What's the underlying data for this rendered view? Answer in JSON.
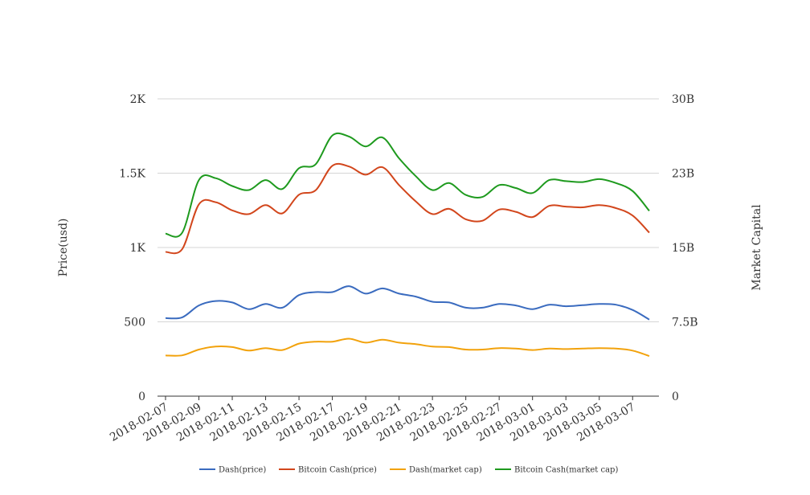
{
  "chart_data": {
    "type": "line",
    "title": "",
    "xlabel": "",
    "ylabel_left": "Price(usd)",
    "ylabel_right": "Market Capital",
    "ylim_left": [
      0,
      2000
    ],
    "ylim_right": [
      0,
      30000000000
    ],
    "yticks_left": [
      {
        "value": 0,
        "label": "0"
      },
      {
        "value": 500,
        "label": "500"
      },
      {
        "value": 1000,
        "label": "1K"
      },
      {
        "value": 1500,
        "label": "1.5K"
      },
      {
        "value": 2000,
        "label": "2K"
      }
    ],
    "yticks_right": [
      {
        "value": 0,
        "label": "0"
      },
      {
        "value": 7500000000,
        "label": "7.5B"
      },
      {
        "value": 15000000000,
        "label": "15B"
      },
      {
        "value": 22500000000,
        "label": "23B"
      },
      {
        "value": 30000000000,
        "label": "30B"
      }
    ],
    "x_tick_labels": [
      "2018-02-07",
      "2018-02-09",
      "2018-02-11",
      "2018-02-13",
      "2018-02-15",
      "2018-02-17",
      "2018-02-19",
      "2018-02-21",
      "2018-02-23",
      "2018-02-25",
      "2018-02-27",
      "2018-03-01",
      "2018-03-03",
      "2018-03-05",
      "2018-03-07"
    ],
    "x": [
      "2018-02-07",
      "2018-02-08",
      "2018-02-09",
      "2018-02-10",
      "2018-02-11",
      "2018-02-12",
      "2018-02-13",
      "2018-02-14",
      "2018-02-15",
      "2018-02-16",
      "2018-02-17",
      "2018-02-18",
      "2018-02-19",
      "2018-02-20",
      "2018-02-21",
      "2018-02-22",
      "2018-02-23",
      "2018-02-24",
      "2018-02-25",
      "2018-02-26",
      "2018-02-27",
      "2018-02-28",
      "2018-03-01",
      "2018-03-02",
      "2018-03-03",
      "2018-03-04",
      "2018-03-05",
      "2018-03-06",
      "2018-03-07",
      "2018-03-08"
    ],
    "grid": true,
    "legend_position": "bottom",
    "series": [
      {
        "name": "Dash(price)",
        "axis": "left",
        "color": "#3a6bbf",
        "values": [
          525,
          530,
          610,
          640,
          630,
          585,
          620,
          595,
          680,
          700,
          700,
          740,
          690,
          725,
          690,
          670,
          635,
          630,
          595,
          595,
          620,
          610,
          585,
          615,
          605,
          612,
          620,
          615,
          580,
          515
        ]
      },
      {
        "name": "Bitcoin Cash(price)",
        "axis": "left",
        "color": "#d2461c",
        "values": [
          970,
          990,
          1290,
          1305,
          1250,
          1225,
          1285,
          1230,
          1355,
          1385,
          1550,
          1545,
          1490,
          1540,
          1420,
          1310,
          1225,
          1260,
          1190,
          1180,
          1255,
          1240,
          1205,
          1280,
          1275,
          1270,
          1285,
          1265,
          1215,
          1100
        ]
      },
      {
        "name": "Dash(market cap)",
        "axis": "right",
        "color": "#f2a20c",
        "values": [
          4100000000,
          4120000000,
          4700000000,
          5000000000,
          4950000000,
          4600000000,
          4850000000,
          4650000000,
          5300000000,
          5500000000,
          5500000000,
          5800000000,
          5400000000,
          5700000000,
          5400000000,
          5250000000,
          5000000000,
          4950000000,
          4700000000,
          4700000000,
          4850000000,
          4800000000,
          4650000000,
          4800000000,
          4750000000,
          4800000000,
          4850000000,
          4800000000,
          4600000000,
          4050000000
        ]
      },
      {
        "name": "Bitcoin Cash(market cap)",
        "axis": "right",
        "color": "#1e9a1e",
        "values": [
          16400000000,
          16500000000,
          21800000000,
          22000000000,
          21200000000,
          20800000000,
          21800000000,
          20900000000,
          23000000000,
          23400000000,
          26300000000,
          26200000000,
          25200000000,
          26100000000,
          24000000000,
          22200000000,
          20800000000,
          21500000000,
          20300000000,
          20100000000,
          21300000000,
          21000000000,
          20500000000,
          21800000000,
          21700000000,
          21600000000,
          21900000000,
          21500000000,
          20700000000,
          18700000000
        ]
      }
    ]
  }
}
